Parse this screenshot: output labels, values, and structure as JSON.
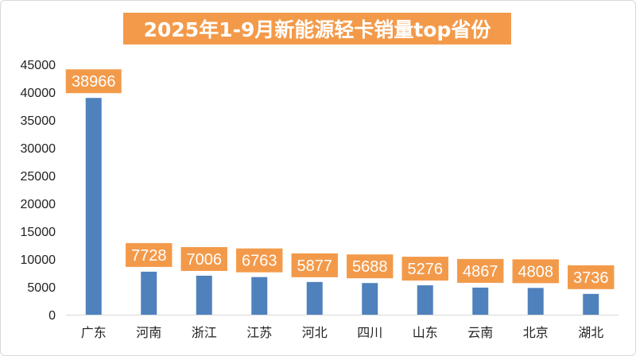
{
  "chart_data": {
    "type": "bar",
    "title": "2025年1-9月新能源轻卡销量top省份",
    "xlabel": "",
    "ylabel": "",
    "categories": [
      "广东",
      "河南",
      "浙江",
      "江苏",
      "河北",
      "四川",
      "山东",
      "云南",
      "北京",
      "湖北"
    ],
    "values": [
      38966,
      7728,
      7006,
      6763,
      5877,
      5688,
      5276,
      4867,
      4808,
      3736
    ],
    "data_labels": [
      "38966",
      "7728",
      "7006",
      "6763",
      "5877",
      "5688",
      "5276",
      "4867",
      "4808",
      "3736"
    ],
    "ylim": [
      0,
      45000
    ],
    "yticks": [
      0,
      5000,
      10000,
      15000,
      20000,
      25000,
      30000,
      35000,
      40000,
      45000
    ],
    "ytick_labels": [
      "0",
      "5000",
      "10000",
      "15000",
      "20000",
      "25000",
      "30000",
      "35000",
      "40000",
      "45000"
    ],
    "grid": false,
    "legend": "none",
    "colors": {
      "bar": "#4f81bd",
      "label_background": "#f39a4a",
      "label_text": "#ffffff",
      "title_background": "#f39a4a",
      "axis": "#d9d9d9"
    }
  }
}
